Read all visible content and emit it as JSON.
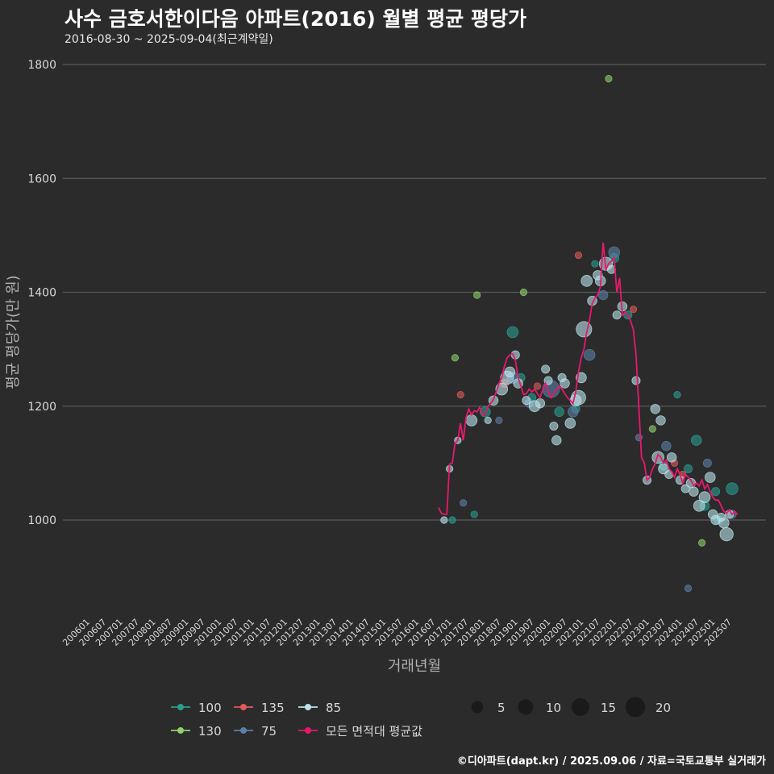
{
  "title": "사수 금호서한이다음 아파트(2016) 월별 평균 평당가",
  "subtitle": "2016-08-30 ~ 2025-09-04(최근계약일)",
  "footer": "©디아파트(dapt.kr) / 2025.09.06 / 자료=국토교통부 실거래가",
  "colors": {
    "background": "#2b2b2b",
    "grid": "#5a5a5a",
    "avg_line": "#e8186d",
    "100": "#2a9d8f",
    "130": "#8fd16a",
    "135": "#e05a5a",
    "75": "#5c7fa8",
    "85": "#b9e3ea"
  },
  "chart_data": {
    "type": "scatter",
    "xlabel": "거래년월",
    "ylabel": "평균 평당가(만 원)",
    "ylim": [
      840,
      1820
    ],
    "yticks": [
      1000,
      1200,
      1400,
      1600,
      1800
    ],
    "xticks": [
      "200601",
      "200607",
      "200701",
      "200707",
      "200801",
      "200807",
      "200901",
      "200907",
      "201001",
      "201007",
      "201101",
      "201107",
      "201201",
      "201207",
      "201301",
      "201307",
      "201401",
      "201407",
      "201501",
      "201507",
      "201601",
      "201607",
      "201701",
      "201707",
      "201801",
      "201807",
      "201901",
      "201907",
      "202001",
      "202007",
      "202101",
      "202107",
      "202201",
      "202207",
      "202301",
      "202307",
      "202401",
      "202407",
      "202501",
      "202507"
    ],
    "legend_area": {
      "title": "",
      "entries": [
        {
          "label": "100",
          "color_key": "100"
        },
        {
          "label": "135",
          "color_key": "135"
        },
        {
          "label": "85",
          "color_key": "85"
        },
        {
          "label": "130",
          "color_key": "130"
        },
        {
          "label": "75",
          "color_key": "75"
        },
        {
          "label": "모든 면적대 평균값",
          "color_key": "avg_line"
        }
      ]
    },
    "legend_size": {
      "entries": [
        {
          "label": "5",
          "count": 5
        },
        {
          "label": "10",
          "count": 10
        },
        {
          "label": "15",
          "count": 15
        },
        {
          "label": "20",
          "count": 20
        }
      ]
    },
    "avg_line": {
      "name": "모든 면적대 평균값",
      "points": [
        [
          "201608",
          1022
        ],
        [
          "201609",
          1012
        ],
        [
          "201610",
          1010
        ],
        [
          "201611",
          1010
        ],
        [
          "201612",
          1098
        ],
        [
          "201701",
          1100
        ],
        [
          "201702",
          1135
        ],
        [
          "201703",
          1140
        ],
        [
          "201704",
          1170
        ],
        [
          "201705",
          1140
        ],
        [
          "201706",
          1180
        ],
        [
          "201707",
          1195
        ],
        [
          "201708",
          1185
        ],
        [
          "201709",
          1192
        ],
        [
          "201710",
          1190
        ],
        [
          "201711",
          1198
        ],
        [
          "201712",
          1185
        ],
        [
          "201801",
          1185
        ],
        [
          "201802",
          1200
        ],
        [
          "201803",
          1205
        ],
        [
          "201804",
          1212
        ],
        [
          "201805",
          1225
        ],
        [
          "201806",
          1240
        ],
        [
          "201807",
          1250
        ],
        [
          "201808",
          1270
        ],
        [
          "201809",
          1285
        ],
        [
          "201810",
          1290
        ],
        [
          "201811",
          1292
        ],
        [
          "201812",
          1280
        ],
        [
          "201901",
          1250
        ],
        [
          "201902",
          1235
        ],
        [
          "201903",
          1220
        ],
        [
          "201904",
          1222
        ],
        [
          "201905",
          1230
        ],
        [
          "201906",
          1225
        ],
        [
          "201907",
          1230
        ],
        [
          "201908",
          1222
        ],
        [
          "201909",
          1215
        ],
        [
          "201910",
          1230
        ],
        [
          "201911",
          1240
        ],
        [
          "201912",
          1225
        ],
        [
          "202001",
          1215
        ],
        [
          "202002",
          1222
        ],
        [
          "202003",
          1230
        ],
        [
          "202004",
          1235
        ],
        [
          "202005",
          1230
        ],
        [
          "202006",
          1222
        ],
        [
          "202007",
          1215
        ],
        [
          "202008",
          1210
        ],
        [
          "202009",
          1205
        ],
        [
          "202010",
          1225
        ],
        [
          "202011",
          1260
        ],
        [
          "202012",
          1285
        ],
        [
          "202101",
          1300
        ],
        [
          "202102",
          1330
        ],
        [
          "202103",
          1350
        ],
        [
          "202104",
          1380
        ],
        [
          "202105",
          1390
        ],
        [
          "202106",
          1395
        ],
        [
          "202107",
          1410
        ],
        [
          "202108",
          1487
        ],
        [
          "202109",
          1440
        ],
        [
          "202110",
          1450
        ],
        [
          "202111",
          1455
        ],
        [
          "202112",
          1460
        ],
        [
          "202201",
          1400
        ],
        [
          "202202",
          1425
        ],
        [
          "202203",
          1360
        ],
        [
          "202204",
          1365
        ],
        [
          "202205",
          1360
        ],
        [
          "202206",
          1350
        ],
        [
          "202207",
          1335
        ],
        [
          "202208",
          1290
        ],
        [
          "202209",
          1200
        ],
        [
          "202210",
          1110
        ],
        [
          "202211",
          1100
        ],
        [
          "202212",
          1070
        ],
        [
          "202301",
          1075
        ],
        [
          "202302",
          1090
        ],
        [
          "202303",
          1100
        ],
        [
          "202304",
          1115
        ],
        [
          "202305",
          1110
        ],
        [
          "202306",
          1100
        ],
        [
          "202307",
          1105
        ],
        [
          "202308",
          1090
        ],
        [
          "202309",
          1085
        ],
        [
          "202310",
          1075
        ],
        [
          "202311",
          1090
        ],
        [
          "202312",
          1080
        ],
        [
          "202401",
          1065
        ],
        [
          "202402",
          1080
        ],
        [
          "202403",
          1075
        ],
        [
          "202404",
          1070
        ],
        [
          "202405",
          1060
        ],
        [
          "202406",
          1065
        ],
        [
          "202407",
          1060
        ],
        [
          "202408",
          1070
        ],
        [
          "202409",
          1055
        ],
        [
          "202410",
          1062
        ],
        [
          "202411",
          1050
        ],
        [
          "202412",
          1040
        ],
        [
          "202501",
          1035
        ],
        [
          "202502",
          1035
        ],
        [
          "202503",
          1025
        ],
        [
          "202504",
          1015
        ],
        [
          "202505",
          1012
        ],
        [
          "202506",
          1018
        ],
        [
          "202507",
          1010
        ],
        [
          "202508",
          1015
        ],
        [
          "202509",
          1010
        ]
      ]
    },
    "series": [
      {
        "name": "100",
        "color_key": "100",
        "points": [
          [
            "201701",
            1000,
            1
          ],
          [
            "201709",
            1010,
            1
          ],
          [
            "201801",
            1190,
            4
          ],
          [
            "201811",
            1330,
            5
          ],
          [
            "201902",
            1250,
            2
          ],
          [
            "201906",
            1215,
            2
          ],
          [
            "202004",
            1190,
            3
          ],
          [
            "202010",
            1195,
            2
          ],
          [
            "202105",
            1450,
            1
          ],
          [
            "202112",
            1460,
            3
          ],
          [
            "202205",
            1360,
            2
          ],
          [
            "202306",
            1095,
            2
          ],
          [
            "202311",
            1220,
            1
          ],
          [
            "202403",
            1090,
            2
          ],
          [
            "202406",
            1140,
            4
          ],
          [
            "202409",
            1025,
            3
          ],
          [
            "202501",
            1050,
            2
          ],
          [
            "202507",
            1055,
            6
          ],
          [
            "202502",
            1000,
            2
          ]
        ]
      },
      {
        "name": "135",
        "color_key": "135",
        "points": [
          [
            "201704",
            1220,
            1
          ],
          [
            "201808",
            1240,
            2
          ],
          [
            "201908",
            1235,
            1
          ],
          [
            "202011",
            1465,
            1
          ],
          [
            "202207",
            1370,
            1
          ],
          [
            "202310",
            1100,
            1
          ],
          [
            "202401",
            1080,
            1
          ]
        ]
      },
      {
        "name": "130",
        "color_key": "130",
        "points": [
          [
            "201702",
            1285,
            1
          ],
          [
            "201710",
            1395,
            1
          ],
          [
            "201903",
            1400,
            1
          ],
          [
            "202110",
            1775,
            1
          ],
          [
            "202302",
            1160,
            1
          ],
          [
            "202408",
            960,
            1
          ]
        ]
      },
      {
        "name": "75",
        "color_key": "75",
        "points": [
          [
            "201705",
            1030,
            1
          ],
          [
            "201806",
            1175,
            1
          ],
          [
            "201811",
            1250,
            5
          ],
          [
            "201905",
            1205,
            2
          ],
          [
            "202001",
            1230,
            15
          ],
          [
            "202009",
            1190,
            4
          ],
          [
            "202103",
            1290,
            5
          ],
          [
            "202108",
            1395,
            3
          ],
          [
            "202112",
            1470,
            5
          ],
          [
            "202209",
            1145,
            1
          ],
          [
            "202307",
            1130,
            3
          ],
          [
            "202403",
            880,
            1
          ],
          [
            "202410",
            1100,
            2
          ],
          [
            "202507",
            1010,
            2
          ]
        ]
      },
      {
        "name": "85",
        "color_key": "85",
        "points": [
          [
            "201610",
            1000,
            1
          ],
          [
            "201612",
            1090,
            1
          ],
          [
            "201703",
            1140,
            1
          ],
          [
            "201708",
            1175,
            5
          ],
          [
            "201802",
            1175,
            1
          ],
          [
            "201804",
            1210,
            3
          ],
          [
            "201807",
            1230,
            6
          ],
          [
            "201809",
            1250,
            8
          ],
          [
            "201810",
            1260,
            4
          ],
          [
            "201812",
            1290,
            2
          ],
          [
            "201901",
            1240,
            3
          ],
          [
            "201904",
            1210,
            2
          ],
          [
            "201907",
            1200,
            5
          ],
          [
            "201909",
            1205,
            3
          ],
          [
            "201911",
            1265,
            2
          ],
          [
            "201912",
            1245,
            2
          ],
          [
            "202002",
            1165,
            2
          ],
          [
            "202003",
            1140,
            3
          ],
          [
            "202005",
            1250,
            2
          ],
          [
            "202006",
            1240,
            3
          ],
          [
            "202008",
            1170,
            4
          ],
          [
            "202010",
            1210,
            5
          ],
          [
            "202011",
            1215,
            10
          ],
          [
            "202012",
            1250,
            4
          ],
          [
            "202101",
            1335,
            12
          ],
          [
            "202102",
            1420,
            5
          ],
          [
            "202104",
            1385,
            3
          ],
          [
            "202106",
            1430,
            3
          ],
          [
            "202107",
            1420,
            4
          ],
          [
            "202109",
            1450,
            8
          ],
          [
            "202111",
            1440,
            2
          ],
          [
            "202201",
            1360,
            2
          ],
          [
            "202203",
            1375,
            3
          ],
          [
            "202208",
            1245,
            2
          ],
          [
            "202212",
            1070,
            2
          ],
          [
            "202303",
            1195,
            3
          ],
          [
            "202304",
            1110,
            6
          ],
          [
            "202305",
            1175,
            3
          ],
          [
            "202306",
            1090,
            4
          ],
          [
            "202308",
            1080,
            2
          ],
          [
            "202309",
            1110,
            3
          ],
          [
            "202312",
            1070,
            2
          ],
          [
            "202402",
            1055,
            2
          ],
          [
            "202404",
            1065,
            3
          ],
          [
            "202405",
            1050,
            3
          ],
          [
            "202407",
            1025,
            5
          ],
          [
            "202409",
            1040,
            5
          ],
          [
            "202411",
            1075,
            4
          ],
          [
            "202412",
            1010,
            3
          ],
          [
            "202501",
            1000,
            3
          ],
          [
            "202503",
            1005,
            2
          ],
          [
            "202504",
            995,
            4
          ],
          [
            "202505",
            975,
            8
          ],
          [
            "202506",
            1010,
            2
          ]
        ]
      }
    ]
  }
}
